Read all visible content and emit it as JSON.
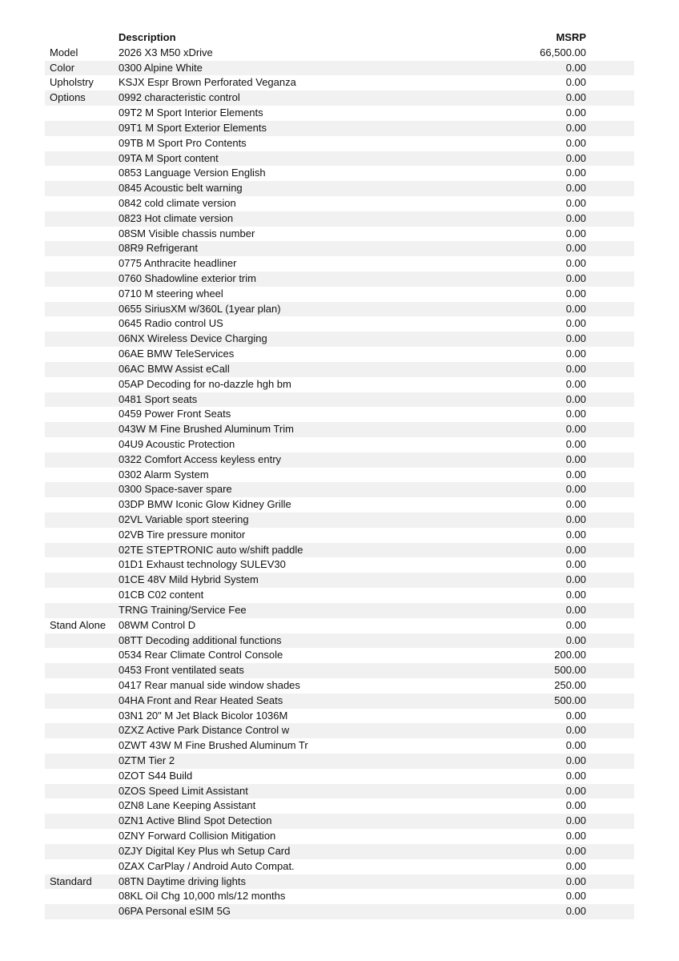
{
  "headers": {
    "description": "Description",
    "msrp": "MSRP"
  },
  "rows": [
    {
      "section": "Model",
      "description": "2026 X3 M50 xDrive",
      "msrp": "66,500.00"
    },
    {
      "section": "Color",
      "description": "0300 Alpine White",
      "msrp": "0.00"
    },
    {
      "section": "Upholstry",
      "description": "KSJX Espr Brown Perforated Veganza",
      "msrp": "0.00"
    },
    {
      "section": "Options",
      "description": "0992 characteristic control",
      "msrp": "0.00"
    },
    {
      "section": "",
      "description": "09T2 M Sport Interior Elements",
      "msrp": "0.00"
    },
    {
      "section": "",
      "description": "09T1 M Sport Exterior Elements",
      "msrp": "0.00"
    },
    {
      "section": "",
      "description": "09TB M Sport Pro Contents",
      "msrp": "0.00"
    },
    {
      "section": "",
      "description": "09TA M Sport content",
      "msrp": "0.00"
    },
    {
      "section": "",
      "description": "0853 Language Version English",
      "msrp": "0.00"
    },
    {
      "section": "",
      "description": "0845 Acoustic belt warning",
      "msrp": "0.00"
    },
    {
      "section": "",
      "description": "0842 cold climate version",
      "msrp": "0.00"
    },
    {
      "section": "",
      "description": "0823 Hot climate version",
      "msrp": "0.00"
    },
    {
      "section": "",
      "description": "08SM Visible chassis number",
      "msrp": "0.00"
    },
    {
      "section": "",
      "description": "08R9 Refrigerant",
      "msrp": "0.00"
    },
    {
      "section": "",
      "description": "0775 Anthracite headliner",
      "msrp": "0.00"
    },
    {
      "section": "",
      "description": "0760 Shadowline exterior trim",
      "msrp": "0.00"
    },
    {
      "section": "",
      "description": "0710 M steering wheel",
      "msrp": "0.00"
    },
    {
      "section": "",
      "description": "0655 SiriusXM w/360L (1year plan)",
      "msrp": "0.00"
    },
    {
      "section": "",
      "description": "0645 Radio control US",
      "msrp": "0.00"
    },
    {
      "section": "",
      "description": "06NX Wireless Device Charging",
      "msrp": "0.00"
    },
    {
      "section": "",
      "description": "06AE BMW TeleServices",
      "msrp": "0.00"
    },
    {
      "section": "",
      "description": "06AC BMW Assist eCall",
      "msrp": "0.00"
    },
    {
      "section": "",
      "description": "05AP Decoding for no-dazzle hgh bm",
      "msrp": "0.00"
    },
    {
      "section": "",
      "description": "0481 Sport seats",
      "msrp": "0.00"
    },
    {
      "section": "",
      "description": "0459 Power Front Seats",
      "msrp": "0.00"
    },
    {
      "section": "",
      "description": "043W M Fine Brushed Aluminum Trim",
      "msrp": "0.00"
    },
    {
      "section": "",
      "description": "04U9 Acoustic Protection",
      "msrp": "0.00"
    },
    {
      "section": "",
      "description": "0322 Comfort Access keyless entry",
      "msrp": "0.00"
    },
    {
      "section": "",
      "description": "0302 Alarm System",
      "msrp": "0.00"
    },
    {
      "section": "",
      "description": "0300 Space-saver spare",
      "msrp": "0.00"
    },
    {
      "section": "",
      "description": "03DP BMW Iconic Glow Kidney Grille",
      "msrp": "0.00"
    },
    {
      "section": "",
      "description": "02VL Variable sport steering",
      "msrp": "0.00"
    },
    {
      "section": "",
      "description": "02VB Tire pressure monitor",
      "msrp": "0.00"
    },
    {
      "section": "",
      "description": "02TE STEPTRONIC auto w/shift paddle",
      "msrp": "0.00"
    },
    {
      "section": "",
      "description": "01D1 Exhaust technology SULEV30",
      "msrp": "0.00"
    },
    {
      "section": "",
      "description": "01CE 48V Mild Hybrid System",
      "msrp": "0.00"
    },
    {
      "section": "",
      "description": "01CB C02 content",
      "msrp": "0.00"
    },
    {
      "section": "",
      "description": "TRNG Training/Service Fee",
      "msrp": "0.00"
    },
    {
      "section": "Stand Alone",
      "description": "08WM Control D",
      "msrp": "0.00"
    },
    {
      "section": "",
      "description": "08TT Decoding additional functions",
      "msrp": "0.00"
    },
    {
      "section": "",
      "description": "0534 Rear Climate Control Console",
      "msrp": "200.00"
    },
    {
      "section": "",
      "description": "0453 Front ventilated seats",
      "msrp": "500.00"
    },
    {
      "section": "",
      "description": "0417 Rear manual side window shades",
      "msrp": "250.00"
    },
    {
      "section": "",
      "description": "04HA Front and Rear Heated Seats",
      "msrp": "500.00"
    },
    {
      "section": "",
      "description": "03N1 20\" M Jet Black Bicolor 1036M",
      "msrp": "0.00"
    },
    {
      "section": "",
      "description": "0ZXZ Active Park Distance Control w",
      "msrp": "0.00"
    },
    {
      "section": "",
      "description": "0ZWT 43W M Fine Brushed Aluminum Tr",
      "msrp": "0.00"
    },
    {
      "section": "",
      "description": "0ZTM Tier 2",
      "msrp": "0.00"
    },
    {
      "section": "",
      "description": "0ZOT S44 Build",
      "msrp": "0.00"
    },
    {
      "section": "",
      "description": "0ZOS Speed Limit Assistant",
      "msrp": "0.00"
    },
    {
      "section": "",
      "description": "0ZN8 Lane Keeping Assistant",
      "msrp": "0.00"
    },
    {
      "section": "",
      "description": "0ZN1 Active Blind Spot Detection",
      "msrp": "0.00"
    },
    {
      "section": "",
      "description": "0ZNY Forward Collision Mitigation",
      "msrp": "0.00"
    },
    {
      "section": "",
      "description": "0ZJY Digital Key Plus wh Setup Card",
      "msrp": "0.00"
    },
    {
      "section": "",
      "description": "0ZAX CarPlay / Android Auto Compat.",
      "msrp": "0.00"
    },
    {
      "section": "Standard",
      "description": "08TN Daytime driving lights",
      "msrp": "0.00"
    },
    {
      "section": "",
      "description": "08KL Oil Chg 10,000 mls/12 months",
      "msrp": "0.00"
    },
    {
      "section": "",
      "description": "06PA Personal eSIM 5G",
      "msrp": "0.00"
    }
  ],
  "colors": {
    "stripe": "#f1f1f1",
    "text": "#111111"
  }
}
